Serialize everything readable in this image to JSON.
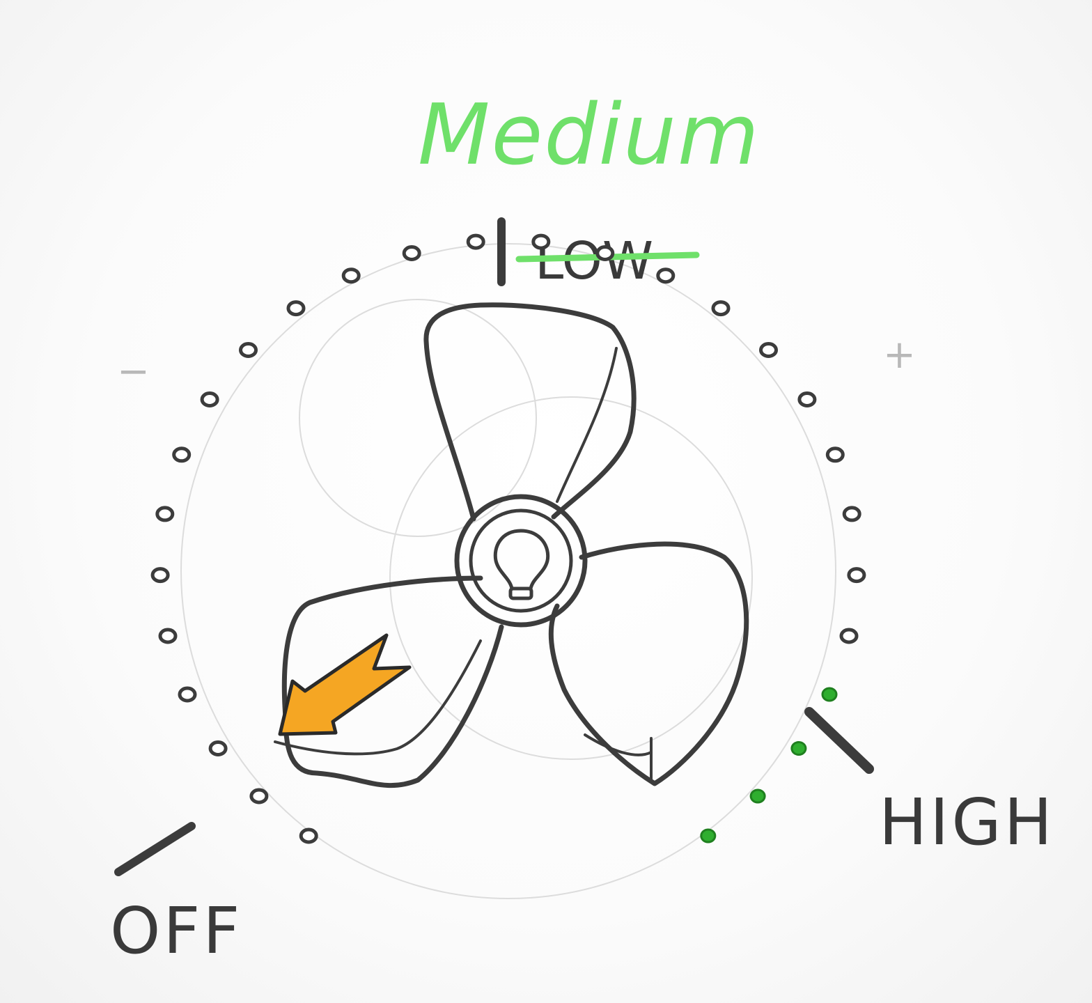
{
  "current_state_label": "Medium",
  "dial": {
    "labels": {
      "low": "LOW",
      "high": "HIGH",
      "off": "OFF"
    },
    "low_label_struck_out": true,
    "decrease_mark": "−",
    "increase_mark": "+",
    "level_dots_total": 28,
    "level_dots_active": 4
  },
  "knob": {
    "center_icon": "light-bulb-icon",
    "pointer_icon": "arrow-pointer-icon",
    "pointer_color": "#f5a623"
  },
  "colors": {
    "active_accent": "#6fe06a",
    "active_dot": "#2fae2f",
    "pencil": "#3c3c3c"
  }
}
